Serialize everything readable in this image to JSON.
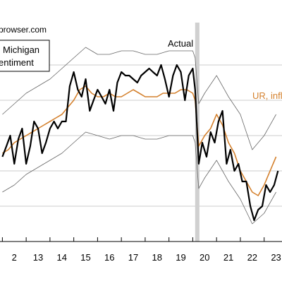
{
  "page": {
    "watermark": "prowser.com"
  },
  "chart_data": {
    "type": "line",
    "legend_lines": [
      "Michigan",
      "entiment"
    ],
    "legend_placement": "top-left",
    "annotations": {
      "actual": "Actual",
      "model": "UR, infl"
    },
    "x_tick_labels": [
      "2",
      "13",
      "14",
      "15",
      "16",
      "17",
      "18",
      "19",
      "20",
      "21",
      "22",
      "23"
    ],
    "x_tick_values": [
      2012,
      2013,
      2014,
      2015,
      2016,
      2017,
      2018,
      2019,
      2020,
      2021,
      2022,
      2023
    ],
    "xlim": [
      2011.9,
      2023.75
    ],
    "ylim": [
      50,
      110
    ],
    "grid": true,
    "grid_y_values": [
      60,
      70,
      80,
      90,
      100
    ],
    "recession_shade": [
      2020.1,
      2020.28
    ],
    "colors": {
      "actual": "#000000",
      "model": "#d4812e",
      "bands": "#666666",
      "grid": "#cccccc",
      "shade": "#d0d0d0"
    },
    "series": [
      {
        "name": "Actual",
        "x": [
          2012.0,
          2012.17,
          2012.33,
          2012.5,
          2012.67,
          2012.83,
          2013.0,
          2013.17,
          2013.33,
          2013.5,
          2013.67,
          2013.83,
          2014.0,
          2014.17,
          2014.33,
          2014.5,
          2014.67,
          2014.83,
          2015.0,
          2015.17,
          2015.33,
          2015.5,
          2015.67,
          2015.83,
          2016.0,
          2016.17,
          2016.33,
          2016.5,
          2016.67,
          2016.83,
          2017.0,
          2017.17,
          2017.33,
          2017.5,
          2017.67,
          2017.83,
          2018.0,
          2018.17,
          2018.33,
          2018.5,
          2018.67,
          2018.83,
          2019.0,
          2019.17,
          2019.33,
          2019.5,
          2019.67,
          2019.83,
          2020.0,
          2020.1,
          2020.25,
          2020.4,
          2020.58,
          2020.75,
          2020.92,
          2021.08,
          2021.25,
          2021.42,
          2021.58,
          2021.75,
          2021.92,
          2022.08,
          2022.25,
          2022.42,
          2022.58,
          2022.75,
          2022.92,
          2023.08,
          2023.25,
          2023.42,
          2023.58
        ],
        "values": [
          74,
          77,
          80,
          72,
          79,
          82,
          72,
          77,
          84,
          82,
          75,
          78,
          82,
          84,
          82,
          84,
          84,
          94,
          98,
          93,
          91,
          96,
          87,
          90,
          93,
          91,
          89,
          93,
          87,
          95,
          98,
          97,
          97,
          96,
          95,
          97,
          98,
          99,
          98,
          97,
          100,
          96,
          91,
          97,
          100,
          98,
          90,
          97,
          99,
          93,
          72,
          78,
          74,
          81,
          78,
          84,
          87,
          72,
          76,
          70,
          72,
          67,
          67,
          60,
          56,
          59,
          60,
          66,
          64,
          66,
          70
        ]
      },
      {
        "name": "UR, infl",
        "x": [
          2012.0,
          2012.25,
          2012.5,
          2012.75,
          2013.0,
          2013.25,
          2013.5,
          2013.75,
          2014.0,
          2014.25,
          2014.5,
          2014.75,
          2015.0,
          2015.25,
          2015.5,
          2015.75,
          2016.0,
          2016.25,
          2016.5,
          2016.75,
          2017.0,
          2017.25,
          2017.5,
          2017.75,
          2018.0,
          2018.25,
          2018.5,
          2018.75,
          2019.0,
          2019.25,
          2019.5,
          2019.75,
          2020.0,
          2020.1,
          2020.25,
          2020.5,
          2020.75,
          2021.0,
          2021.25,
          2021.5,
          2021.75,
          2022.0,
          2022.25,
          2022.5,
          2022.75,
          2023.0,
          2023.25,
          2023.5
        ],
        "values": [
          75,
          76,
          78,
          79,
          80,
          81,
          82,
          83,
          84,
          85,
          86,
          88,
          90,
          93,
          94,
          92,
          91,
          91,
          92,
          91,
          91,
          92,
          93,
          92,
          91,
          91,
          91,
          92,
          92,
          92,
          93,
          93,
          92,
          90,
          77,
          80,
          82,
          86,
          83,
          78,
          75,
          70,
          67,
          64,
          63,
          66,
          70,
          74
        ]
      },
      {
        "name": "",
        "role": "upper-band",
        "x": [
          2012.0,
          2012.5,
          2013.0,
          2013.5,
          2014.0,
          2014.5,
          2015.0,
          2015.5,
          2016.0,
          2016.5,
          2017.0,
          2017.5,
          2018.0,
          2018.5,
          2019.0,
          2019.5,
          2020.0,
          2020.1,
          2020.25,
          2020.5,
          2021.0,
          2021.5,
          2022.0,
          2022.5,
          2023.0,
          2023.5
        ],
        "values": [
          86,
          89,
          92,
          94,
          96,
          99,
          102,
          105,
          103,
          103,
          104,
          104,
          103,
          103,
          104,
          104,
          104,
          102,
          89,
          92,
          97,
          91,
          86,
          76,
          80,
          86
        ]
      },
      {
        "name": "",
        "role": "lower-band",
        "x": [
          2012.0,
          2012.5,
          2013.0,
          2013.5,
          2014.0,
          2014.5,
          2015.0,
          2015.5,
          2016.0,
          2016.5,
          2017.0,
          2017.5,
          2018.0,
          2018.5,
          2019.0,
          2019.5,
          2020.0,
          2020.1,
          2020.25,
          2020.5,
          2021.0,
          2021.5,
          2022.0,
          2022.5,
          2023.0,
          2023.5
        ],
        "values": [
          64,
          66,
          69,
          71,
          73,
          75,
          78,
          81,
          80,
          79,
          80,
          80,
          79,
          79,
          80,
          80,
          80,
          78,
          65,
          68,
          73,
          67,
          62,
          55,
          58,
          64
        ]
      }
    ]
  }
}
